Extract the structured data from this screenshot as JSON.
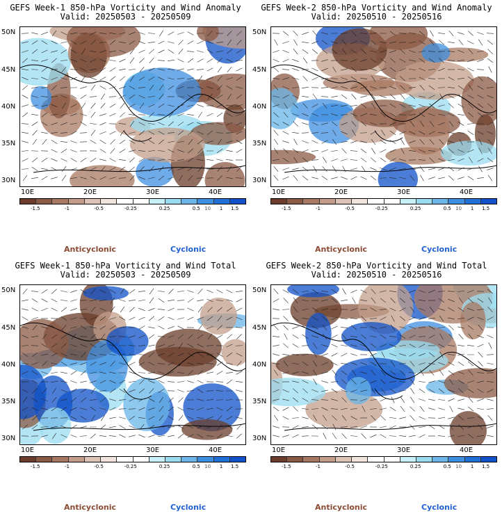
{
  "panels": [
    {
      "title": "GEFS Week-1 850-hPa Vorticity and Wind Anomaly",
      "valid": "Valid: 20250503 - 20250509"
    },
    {
      "title": "GEFS Week-2 850-hPa Vorticity and Wind Anomaly",
      "valid": "Valid: 20250510 - 20250516"
    },
    {
      "title": "GEFS Week-1 850-hPa Vorticity and Wind Total",
      "valid": "Valid: 20250503 - 20250509"
    },
    {
      "title": "GEFS Week-2 850-hPa Vorticity and Wind Total",
      "valid": "Valid: 20250510 - 20250516"
    }
  ],
  "lat_labels": [
    "50N",
    "45N",
    "40N",
    "35N",
    "30N"
  ],
  "lon_labels": [
    "10E",
    "20E",
    "30E",
    "40E"
  ],
  "colorbar": {
    "ticks": [
      "-1.5",
      "-1",
      "-0.5",
      "-0.25",
      "0.25",
      "0.5",
      "1",
      "1.5"
    ],
    "unit_label": "10",
    "colors": [
      "#6b3d2a",
      "#8b5a44",
      "#a87862",
      "#c39d8a",
      "#dcc3b6",
      "#f1e4dc",
      "#ffffff",
      "#ffffff",
      "#c8f0f8",
      "#9bdcf0",
      "#6ab6e8",
      "#3f8fe0",
      "#2070d8",
      "#1052c8"
    ]
  },
  "legend": {
    "anticyclonic": "Anticyclonic",
    "cyclonic": "Cyclonic"
  }
}
